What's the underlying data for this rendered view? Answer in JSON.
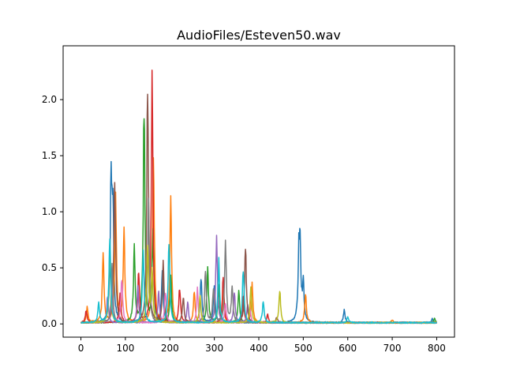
{
  "chart_data": {
    "type": "line",
    "title": "AudioFiles/Esteven50.wav",
    "xlabel": "",
    "ylabel": "",
    "xlim": [
      -40,
      840
    ],
    "ylim": [
      -0.118,
      2.48
    ],
    "xticks": [
      0,
      100,
      200,
      300,
      400,
      500,
      600,
      700,
      800
    ],
    "xtick_labels": [
      "0",
      "100",
      "200",
      "300",
      "400",
      "500",
      "600",
      "700",
      "800"
    ],
    "yticks": [
      0.0,
      0.5,
      1.0,
      1.5,
      2.0
    ],
    "ytick_labels": [
      "0.0",
      "0.5",
      "1.0",
      "1.5",
      "2.0"
    ],
    "grid": false,
    "legend": "none",
    "series_colors": [
      "#1f77b4",
      "#ff7f0e",
      "#2ca02c",
      "#d62728",
      "#9467bd",
      "#8c564b",
      "#e377c2",
      "#7f7f7f",
      "#bcbd22",
      "#17becf"
    ],
    "x_max": 800,
    "series": [
      {
        "peaks": [
          [
            68,
            1.42
          ],
          [
            72,
            0.95
          ],
          [
            183,
            0.55
          ],
          [
            270,
            0.45
          ],
          [
            300,
            0.4
          ],
          [
            490,
            0.58
          ],
          [
            493,
            0.62
          ],
          [
            500,
            0.35
          ],
          [
            592,
            0.12
          ],
          [
            790,
            0.04
          ]
        ]
      },
      {
        "peaks": [
          [
            14,
            0.14
          ],
          [
            50,
            0.65
          ],
          [
            78,
            1.26
          ],
          [
            97,
            0.94
          ],
          [
            163,
            1.75
          ],
          [
            202,
            1.14
          ],
          [
            255,
            0.3
          ],
          [
            320,
            0.3
          ],
          [
            385,
            0.38
          ],
          [
            505,
            0.3
          ],
          [
            700,
            0.03
          ]
        ]
      },
      {
        "peaks": [
          [
            120,
            0.7
          ],
          [
            142,
            2.07
          ],
          [
            162,
            0.85
          ],
          [
            202,
            0.45
          ],
          [
            285,
            0.55
          ],
          [
            310,
            0.35
          ],
          [
            355,
            0.32
          ],
          [
            795,
            0.04
          ]
        ]
      },
      {
        "peaks": [
          [
            12,
            0.12
          ],
          [
            88,
            0.3
          ],
          [
            130,
            0.52
          ],
          [
            160,
            2.31
          ],
          [
            222,
            0.35
          ],
          [
            320,
            0.45
          ],
          [
            365,
            0.25
          ],
          [
            420,
            0.08
          ]
        ]
      },
      {
        "peaks": [
          [
            60,
            0.25
          ],
          [
            128,
            0.35
          ],
          [
            175,
            0.3
          ],
          [
            240,
            0.2
          ],
          [
            305,
            0.82
          ],
          [
            345,
            0.3
          ],
          [
            375,
            0.18
          ]
        ]
      },
      {
        "peaks": [
          [
            76,
            1.45
          ],
          [
            150,
            2.37
          ],
          [
            185,
            0.57
          ],
          [
            230,
            0.25
          ],
          [
            370,
            0.79
          ],
          [
            440,
            0.05
          ]
        ]
      },
      {
        "peaks": [
          [
            70,
            0.4
          ],
          [
            92,
            0.45
          ],
          [
            190,
            0.3
          ],
          [
            262,
            0.32
          ],
          [
            325,
            0.2
          ],
          [
            380,
            0.15
          ]
        ]
      },
      {
        "peaks": [
          [
            70,
            0.55
          ],
          [
            152,
            1.2
          ],
          [
            280,
            0.5
          ],
          [
            298,
            0.35
          ],
          [
            325,
            0.78
          ],
          [
            340,
            0.35
          ]
        ]
      },
      {
        "peaks": [
          [
            65,
            0.75
          ],
          [
            150,
            0.8
          ],
          [
            160,
            0.5
          ],
          [
            268,
            0.25
          ],
          [
            382,
            0.35
          ],
          [
            447,
            0.32
          ]
        ]
      },
      {
        "peaks": [
          [
            40,
            0.18
          ],
          [
            65,
            0.9
          ],
          [
            140,
            0.72
          ],
          [
            198,
            0.82
          ],
          [
            310,
            0.58
          ],
          [
            365,
            0.55
          ],
          [
            410,
            0.2
          ],
          [
            600,
            0.06
          ]
        ]
      }
    ]
  }
}
